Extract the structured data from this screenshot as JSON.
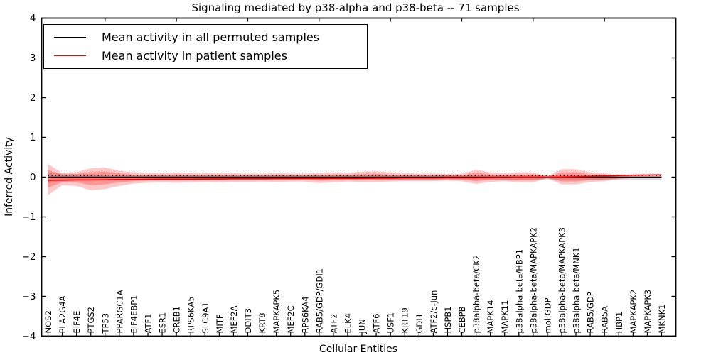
{
  "title": "Signaling mediated by p38-alpha and p38-beta -- 71 samples",
  "legend": {
    "entries": [
      {
        "label": "Mean activity in all permuted samples",
        "color": "#000000",
        "style": "solid"
      },
      {
        "label": "Mean activity in patient samples",
        "color": "#ff0000",
        "style": "solid"
      }
    ]
  },
  "axes": {
    "xlabel": "Cellular Entities",
    "ylabel": "Inferred Activity",
    "y_ticks": [
      4,
      3,
      2,
      1,
      0,
      -1,
      -2,
      -3,
      -4
    ],
    "ylim": [
      -4,
      4
    ],
    "top_tick_category_indices": [
      4,
      9,
      14,
      19,
      24,
      29,
      34,
      39
    ]
  },
  "chart_data": {
    "type": "line",
    "title": "Signaling mediated by p38-alpha and p38-beta -- 71 samples",
    "xlabel": "Cellular Entities",
    "ylabel": "Inferred Activity",
    "ylim": [
      -4,
      4
    ],
    "grid": false,
    "legend_position": "upper left",
    "categories": [
      "NOS2",
      "PLA2G4A",
      "EIF4E",
      "PTGS2",
      "TP53",
      "PPARGC1A",
      "EIF4EBP1",
      "ATF1",
      "ESR1",
      "CREB1",
      "RPS6KA5",
      "SLC9A1",
      "MITF",
      "MEF2A",
      "DDIT3",
      "KRT8",
      "MAPKAPK5",
      "MEF2C",
      "RPS6KA4",
      "RAB5/GDP/GDI1",
      "ATF2",
      "ELK4",
      "JUN",
      "ATF6",
      "USF1",
      "KRT19",
      "GDI1",
      "ATF2/c-Jun",
      "HSPB1",
      "CEBPB",
      "p38alpha-beta/CK2",
      "MAPK14",
      "MAPK11",
      "p38alpha-beta/HBP1",
      "p38alpha-beta/MAPKAPK2",
      "mol:GDP",
      "p38alpha-beta/MAPKAPK3",
      "p38alpha-beta/MNK1",
      "RAB5/GDP",
      "RAB5A",
      "HBP1",
      "MAPKAPK2",
      "MAPKAPK3",
      "MKNK1"
    ],
    "series": [
      {
        "name": "Mean activity in all permuted samples",
        "color": "#000000",
        "values": [
          0,
          0,
          0,
          0,
          0,
          0,
          0,
          0,
          0,
          0,
          0,
          0,
          0,
          0,
          0,
          0,
          0,
          0,
          0,
          0,
          0,
          0,
          0,
          0,
          0,
          0,
          0,
          0,
          0,
          0,
          0,
          0,
          0,
          0,
          0,
          0,
          0,
          0,
          0,
          0,
          0,
          0,
          0,
          0
        ]
      },
      {
        "name": "Mean activity in patient samples",
        "color": "#ff0000",
        "values": [
          -0.08,
          -0.075,
          -0.07,
          -0.07,
          -0.065,
          -0.06,
          -0.06,
          -0.055,
          -0.05,
          -0.05,
          -0.05,
          -0.045,
          -0.045,
          -0.04,
          -0.04,
          -0.04,
          -0.035,
          -0.035,
          -0.03,
          -0.035,
          -0.03,
          -0.03,
          -0.03,
          -0.025,
          -0.025,
          -0.02,
          -0.02,
          -0.02,
          -0.015,
          -0.015,
          -0.015,
          -0.01,
          -0.01,
          -0.005,
          0.0,
          0.0,
          0.005,
          0.01,
          0.02,
          0.03,
          0.04,
          0.05,
          0.055,
          0.06
        ]
      }
    ],
    "dotted_reference_value": 0.045,
    "bands": {
      "patient_outer": {
        "color": "#ff0000",
        "opacity": 0.22,
        "upper": [
          0.33,
          0.1,
          0.13,
          0.22,
          0.24,
          0.16,
          0.12,
          0.1,
          0.1,
          0.11,
          0.1,
          0.1,
          0.1,
          0.1,
          0.09,
          0.09,
          0.1,
          0.09,
          0.09,
          0.1,
          0.12,
          0.1,
          0.14,
          0.15,
          0.12,
          0.1,
          0.09,
          0.09,
          0.08,
          0.09,
          0.19,
          0.12,
          0.1,
          0.12,
          0.12,
          0.02,
          0.2,
          0.2,
          0.12,
          0.1,
          0.04,
          0.02,
          0.02,
          0.02
        ],
        "lower": [
          -0.45,
          -0.2,
          -0.22,
          -0.33,
          -0.3,
          -0.22,
          -0.16,
          -0.14,
          -0.13,
          -0.14,
          -0.13,
          -0.12,
          -0.13,
          -0.12,
          -0.12,
          -0.11,
          -0.12,
          -0.11,
          -0.11,
          -0.15,
          -0.13,
          -0.11,
          -0.12,
          -0.12,
          -0.11,
          -0.1,
          -0.1,
          -0.1,
          -0.09,
          -0.1,
          -0.17,
          -0.12,
          -0.1,
          -0.13,
          -0.13,
          -0.03,
          -0.18,
          -0.18,
          -0.12,
          -0.1,
          -0.05,
          -0.02,
          -0.02,
          -0.02
        ]
      },
      "patient_inner": {
        "color": "#ff0000",
        "opacity": 0.25,
        "upper": [
          0.18,
          0.06,
          0.08,
          0.13,
          0.14,
          0.1,
          0.07,
          0.06,
          0.06,
          0.07,
          0.06,
          0.06,
          0.06,
          0.06,
          0.05,
          0.05,
          0.06,
          0.05,
          0.05,
          0.06,
          0.07,
          0.06,
          0.08,
          0.09,
          0.07,
          0.06,
          0.05,
          0.05,
          0.05,
          0.05,
          0.11,
          0.07,
          0.06,
          0.07,
          0.07,
          0.01,
          0.12,
          0.12,
          0.07,
          0.06,
          0.02,
          0.01,
          0.01,
          0.01
        ],
        "lower": [
          -0.27,
          -0.12,
          -0.13,
          -0.2,
          -0.18,
          -0.13,
          -0.1,
          -0.08,
          -0.08,
          -0.08,
          -0.08,
          -0.07,
          -0.08,
          -0.07,
          -0.07,
          -0.07,
          -0.07,
          -0.07,
          -0.07,
          -0.09,
          -0.08,
          -0.07,
          -0.07,
          -0.07,
          -0.07,
          -0.06,
          -0.06,
          -0.06,
          -0.05,
          -0.06,
          -0.1,
          -0.07,
          -0.06,
          -0.08,
          -0.08,
          -0.02,
          -0.11,
          -0.11,
          -0.07,
          -0.06,
          -0.03,
          -0.01,
          -0.01,
          -0.01
        ]
      },
      "permuted": {
        "color": "#888888",
        "opacity": 0.3,
        "upper": [
          0.13,
          0.09,
          0.08,
          0.07,
          0.07,
          0.06,
          0.06,
          0.06,
          0.06,
          0.06,
          0.06,
          0.06,
          0.06,
          0.06,
          0.06,
          0.06,
          0.06,
          0.06,
          0.06,
          0.06,
          0.06,
          0.06,
          0.06,
          0.06,
          0.06,
          0.06,
          0.06,
          0.06,
          0.06,
          0.06,
          0.06,
          0.06,
          0.06,
          0.06,
          0.06,
          0.06,
          0.06,
          0.06,
          0.06,
          0.06,
          0.07,
          0.07,
          0.07,
          0.07
        ],
        "lower": [
          -0.15,
          -0.1,
          -0.08,
          -0.07,
          -0.07,
          -0.06,
          -0.06,
          -0.06,
          -0.06,
          -0.06,
          -0.06,
          -0.06,
          -0.06,
          -0.06,
          -0.06,
          -0.06,
          -0.06,
          -0.06,
          -0.06,
          -0.06,
          -0.06,
          -0.06,
          -0.06,
          -0.06,
          -0.06,
          -0.06,
          -0.06,
          -0.06,
          -0.06,
          -0.06,
          -0.06,
          -0.06,
          -0.06,
          -0.06,
          -0.06,
          -0.06,
          -0.06,
          -0.06,
          -0.06,
          -0.06,
          -0.07,
          -0.07,
          -0.07,
          -0.07
        ]
      }
    }
  }
}
